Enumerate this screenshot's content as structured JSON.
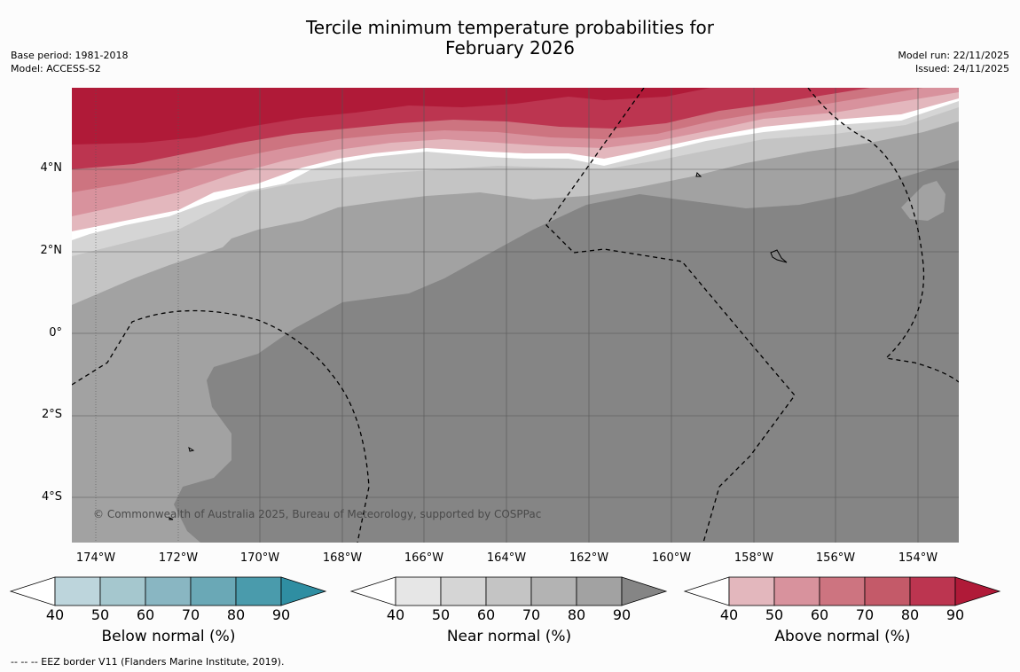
{
  "title_line1": "Tercile minimum temperature probabilities for",
  "title_line2": "February 2026",
  "left_meta": {
    "base_period": "Base period: 1981-2018",
    "model": "Model: ACCESS-S2"
  },
  "right_meta": {
    "model_run": "Model run: 22/11/2025",
    "issued": "Issued: 24/11/2025"
  },
  "lat_labels": [
    "4°N",
    "2°N",
    "0°",
    "2°S",
    "4°S"
  ],
  "lon_labels": [
    "174°W",
    "172°W",
    "170°W",
    "168°W",
    "166°W",
    "164°W",
    "162°W",
    "160°W",
    "158°W",
    "156°W",
    "154°W"
  ],
  "credit": "© Commonwealth of Australia 2025, Bureau of Meteorology, supported by COSPPac",
  "colorbars": [
    {
      "title": "Below normal (%)",
      "ticks": [
        "40",
        "50",
        "60",
        "70",
        "80",
        "90"
      ],
      "colors": [
        "#ffffff",
        "#bdd5dc",
        "#a5c7ce",
        "#89b6c2",
        "#6aa8b6",
        "#4a9bac",
        "#2f8ea2"
      ]
    },
    {
      "title": "Near normal (%)",
      "ticks": [
        "40",
        "50",
        "60",
        "70",
        "80",
        "90"
      ],
      "colors": [
        "#ffffff",
        "#e6e6e6",
        "#d5d5d5",
        "#c4c4c4",
        "#b3b3b3",
        "#a2a2a2",
        "#858585"
      ]
    },
    {
      "title": "Above normal (%)",
      "ticks": [
        "40",
        "50",
        "60",
        "70",
        "80",
        "90"
      ],
      "colors": [
        "#ffffff",
        "#e3b7bd",
        "#d8929d",
        "#cd7480",
        "#c45a69",
        "#bc3550",
        "#b01a38"
      ]
    }
  ],
  "footer": "--  --  -- EEZ border V11 (Flanders Marine Institute, 2019).",
  "colors": {
    "near_90": "#858585",
    "near_80": "#a2a2a2",
    "near_70": "#c4c4c4",
    "near_60": "#d5d5d5",
    "above_50": "#e3b7bd",
    "above_60": "#d8929d",
    "above_70": "#cd7480",
    "above_80": "#c45a69",
    "above_90": "#b01a38"
  }
}
